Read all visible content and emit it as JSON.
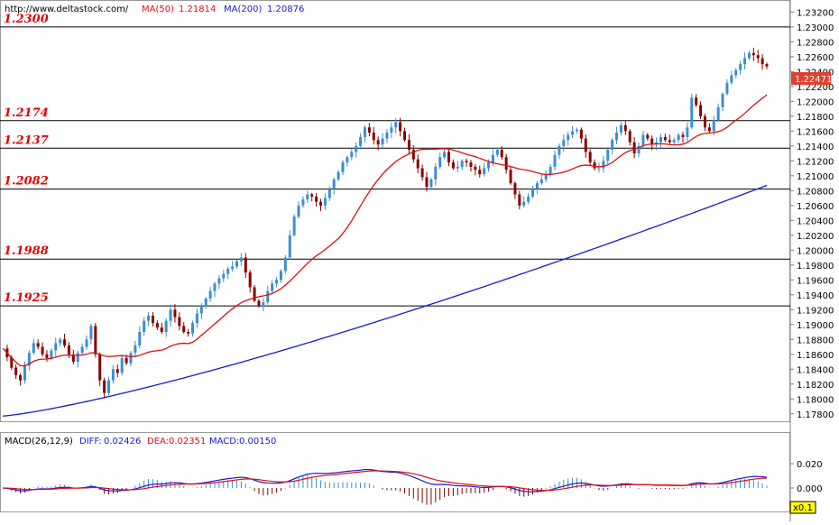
{
  "header": {
    "url": "http://www.deltastock.com/",
    "ma50_label": "MA(50)",
    "ma50_value": "1.21814",
    "ma200_label": "MA(200)",
    "ma200_value": "1.20876"
  },
  "macd_header": {
    "title": "MACD(26,12,9)",
    "diff_label": "DIFF:",
    "diff_value": "0.02426",
    "dea_label": "DEA:",
    "dea_value": "0.02351",
    "macd_label": "MACD:",
    "macd_value": "0.00150"
  },
  "current_price": "1.22471",
  "scale_badge": "x0.1",
  "colors": {
    "candle": "#3a8fd0",
    "ma50": "#e01010",
    "ma200": "#1a1ad0",
    "level_label": "#e00000",
    "macd_bar_pos": "#3a8fd0",
    "macd_bar_neg": "#8b0000",
    "price_badge": "#e04030",
    "scale_badge_bg": "#ffff00"
  },
  "chart_data": [
    {
      "type": "candlestick",
      "title": "",
      "y_ticks": [
        "1.23200",
        "1.23000",
        "1.22800",
        "1.22600",
        "1.22400",
        "1.22200",
        "1.22000",
        "1.21800",
        "1.21600",
        "1.21400",
        "1.21200",
        "1.21000",
        "1.20800",
        "1.20600",
        "1.20400",
        "1.20200",
        "1.20000",
        "1.19800",
        "1.19600",
        "1.19400",
        "1.19200",
        "1.19000",
        "1.18800",
        "1.18600",
        "1.18400",
        "1.18200",
        "1.18000",
        "1.17800"
      ],
      "ylim": [
        1.177,
        1.2335
      ],
      "horizontal_levels": [
        {
          "label": "1.2300",
          "value": 1.23
        },
        {
          "label": "1.2174",
          "value": 1.2174
        },
        {
          "label": "1.2137",
          "value": 1.2137
        },
        {
          "label": "1.2082",
          "value": 1.2082
        },
        {
          "label": "1.1988",
          "value": 1.1988
        },
        {
          "label": "1.1925",
          "value": 1.1925
        }
      ],
      "price_path": [
        1.1868,
        1.1856,
        1.1842,
        1.1832,
        1.1825,
        1.1845,
        1.1862,
        1.1875,
        1.187,
        1.186,
        1.1855,
        1.1865,
        1.1875,
        1.188,
        1.1872,
        1.186,
        1.185,
        1.1862,
        1.187,
        1.188,
        1.1898,
        1.186,
        1.1825,
        1.1808,
        1.1825,
        1.184,
        1.1835,
        1.1855,
        1.1848,
        1.1862,
        1.1872,
        1.189,
        1.1905,
        1.1912,
        1.1902,
        1.1896,
        1.189,
        1.1905,
        1.192,
        1.191,
        1.1898,
        1.189,
        1.1888,
        1.1902,
        1.1915,
        1.1925,
        1.1935,
        1.1945,
        1.1955,
        1.1962,
        1.1968,
        1.1975,
        1.1978,
        1.1985,
        1.199,
        1.197,
        1.195,
        1.1932,
        1.1925,
        1.193,
        1.1945,
        1.1955,
        1.196,
        1.1972,
        1.199,
        1.202,
        1.2045,
        1.206,
        1.2068,
        1.2075,
        1.2072,
        1.2065,
        1.206,
        1.207,
        1.2082,
        1.2095,
        1.2105,
        1.2118,
        1.2125,
        1.2132,
        1.214,
        1.2152,
        1.2165,
        1.2158,
        1.2148,
        1.2142,
        1.215,
        1.2158,
        1.2165,
        1.2172,
        1.216,
        1.2148,
        1.2135,
        1.2122,
        1.211,
        1.2098,
        1.2085,
        1.2095,
        1.2112,
        1.2125,
        1.2132,
        1.2118,
        1.211,
        1.2112,
        1.212,
        1.2118,
        1.2112,
        1.2108,
        1.2102,
        1.211,
        1.2118,
        1.2128,
        1.2135,
        1.2125,
        1.2108,
        1.209,
        1.2075,
        1.206,
        1.2065,
        1.2072,
        1.2082,
        1.209,
        1.2095,
        1.2102,
        1.2112,
        1.2128,
        1.214,
        1.2148,
        1.2155,
        1.216,
        1.2162,
        1.215,
        1.2132,
        1.2118,
        1.211,
        1.211,
        1.212,
        1.2135,
        1.2148,
        1.2158,
        1.2168,
        1.216,
        1.2145,
        1.213,
        1.214,
        1.2155,
        1.215,
        1.2142,
        1.2145,
        1.2152,
        1.2148,
        1.2145,
        1.2148,
        1.2155,
        1.2152,
        1.2165,
        1.2205,
        1.2195,
        1.218,
        1.2165,
        1.216,
        1.2175,
        1.2192,
        1.221,
        1.2225,
        1.2235,
        1.2242,
        1.225,
        1.2258,
        1.2265,
        1.2262,
        1.2258,
        1.225,
        1.2247
      ]
    },
    {
      "type": "macd",
      "title": "MACD(26,12,9)",
      "y_ticks": [
        "0.020",
        "0.000"
      ]
    }
  ]
}
